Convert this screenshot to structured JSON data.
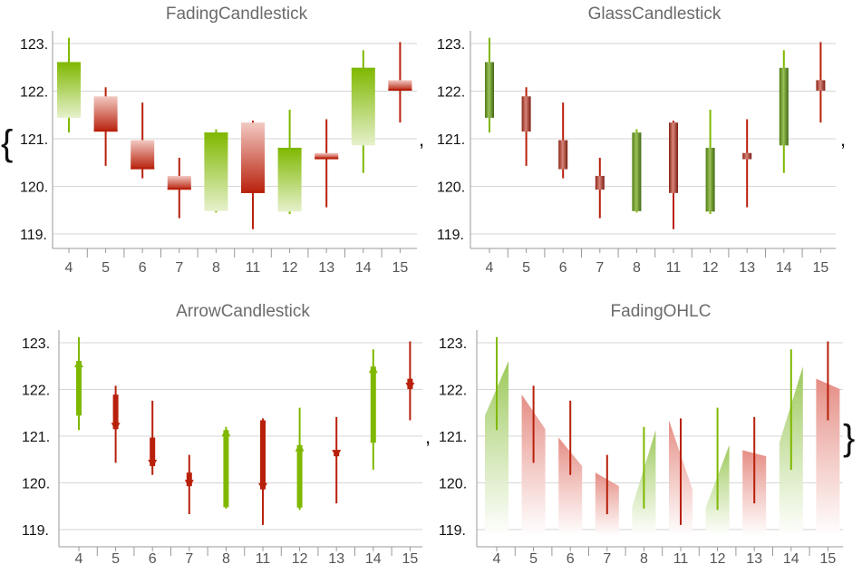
{
  "colors": {
    "up": "#7fb800",
    "down": "#b8200b",
    "grid": "#d6d6d6",
    "axis": "#999999"
  },
  "separators": {
    "open_brace": "{",
    "close_brace": "}",
    "comma": ","
  },
  "chart_data": [
    {
      "type": "candlestick",
      "style": "FadingCandlestick",
      "title": "FadingCandlestick",
      "categories": [
        "4",
        "5",
        "6",
        "7",
        "8",
        "11",
        "12",
        "13",
        "14",
        "15"
      ],
      "ylim": [
        118.8,
        123.3
      ],
      "yticks": [
        119,
        120,
        121,
        122,
        123
      ],
      "ytick_labels": [
        "119.",
        "120.",
        "121.",
        "122.",
        "123."
      ],
      "grid": true,
      "ohlc": [
        {
          "open": 121.44,
          "high": 123.12,
          "low": 121.13,
          "close": 122.61
        },
        {
          "open": 121.89,
          "high": 122.08,
          "low": 120.43,
          "close": 121.15
        },
        {
          "open": 120.97,
          "high": 121.76,
          "low": 120.17,
          "close": 120.36
        },
        {
          "open": 120.22,
          "high": 120.6,
          "low": 119.33,
          "close": 119.93
        },
        {
          "open": 119.48,
          "high": 121.2,
          "low": 119.45,
          "close": 121.13
        },
        {
          "open": 121.34,
          "high": 121.38,
          "low": 119.1,
          "close": 119.86
        },
        {
          "open": 119.47,
          "high": 121.61,
          "low": 119.42,
          "close": 120.81
        },
        {
          "open": 120.7,
          "high": 121.41,
          "low": 119.56,
          "close": 120.57
        },
        {
          "open": 120.86,
          "high": 122.86,
          "low": 120.28,
          "close": 122.49
        },
        {
          "open": 122.23,
          "high": 123.03,
          "low": 121.34,
          "close": 122.01
        }
      ]
    },
    {
      "type": "candlestick",
      "style": "GlassCandlestick",
      "title": "GlassCandlestick",
      "categories": [
        "4",
        "5",
        "6",
        "7",
        "8",
        "11",
        "12",
        "13",
        "14",
        "15"
      ],
      "ylim": [
        118.8,
        123.3
      ],
      "yticks": [
        119,
        120,
        121,
        122,
        123
      ],
      "ytick_labels": [
        "119.",
        "120.",
        "121.",
        "122.",
        "123."
      ],
      "grid": true,
      "ohlc": [
        {
          "open": 121.44,
          "high": 123.12,
          "low": 121.13,
          "close": 122.61
        },
        {
          "open": 121.89,
          "high": 122.08,
          "low": 120.43,
          "close": 121.15
        },
        {
          "open": 120.97,
          "high": 121.76,
          "low": 120.17,
          "close": 120.36
        },
        {
          "open": 120.22,
          "high": 120.6,
          "low": 119.33,
          "close": 119.93
        },
        {
          "open": 119.48,
          "high": 121.2,
          "low": 119.45,
          "close": 121.13
        },
        {
          "open": 121.34,
          "high": 121.38,
          "low": 119.1,
          "close": 119.86
        },
        {
          "open": 119.47,
          "high": 121.61,
          "low": 119.42,
          "close": 120.81
        },
        {
          "open": 120.7,
          "high": 121.41,
          "low": 119.56,
          "close": 120.57
        },
        {
          "open": 120.86,
          "high": 122.86,
          "low": 120.28,
          "close": 122.49
        },
        {
          "open": 122.23,
          "high": 123.03,
          "low": 121.34,
          "close": 122.01
        }
      ]
    },
    {
      "type": "candlestick",
      "style": "ArrowCandlestick",
      "title": "ArrowCandlestick",
      "categories": [
        "4",
        "5",
        "6",
        "7",
        "8",
        "11",
        "12",
        "13",
        "14",
        "15"
      ],
      "ylim": [
        118.8,
        123.3
      ],
      "yticks": [
        119,
        120,
        121,
        122,
        123
      ],
      "ytick_labels": [
        "119.",
        "120.",
        "121.",
        "122.",
        "123."
      ],
      "grid": true,
      "ohlc": [
        {
          "open": 121.44,
          "high": 123.12,
          "low": 121.13,
          "close": 122.61
        },
        {
          "open": 121.89,
          "high": 122.08,
          "low": 120.43,
          "close": 121.15
        },
        {
          "open": 120.97,
          "high": 121.76,
          "low": 120.17,
          "close": 120.36
        },
        {
          "open": 120.22,
          "high": 120.6,
          "low": 119.33,
          "close": 119.93
        },
        {
          "open": 119.48,
          "high": 121.2,
          "low": 119.45,
          "close": 121.13
        },
        {
          "open": 121.34,
          "high": 121.38,
          "low": 119.1,
          "close": 119.86
        },
        {
          "open": 119.47,
          "high": 121.61,
          "low": 119.42,
          "close": 120.81
        },
        {
          "open": 120.7,
          "high": 121.41,
          "low": 119.56,
          "close": 120.57
        },
        {
          "open": 120.86,
          "high": 122.86,
          "low": 120.28,
          "close": 122.49
        },
        {
          "open": 122.23,
          "high": 123.03,
          "low": 121.34,
          "close": 122.01
        }
      ]
    },
    {
      "type": "candlestick",
      "style": "FadingOHLC",
      "title": "FadingOHLC",
      "categories": [
        "4",
        "5",
        "6",
        "7",
        "8",
        "11",
        "12",
        "13",
        "14",
        "15"
      ],
      "ylim": [
        118.8,
        123.3
      ],
      "yticks": [
        119,
        120,
        121,
        122,
        123
      ],
      "ytick_labels": [
        "119.",
        "120.",
        "121.",
        "122.",
        "123."
      ],
      "grid": true,
      "ohlc": [
        {
          "open": 121.44,
          "high": 123.12,
          "low": 121.13,
          "close": 122.61
        },
        {
          "open": 121.89,
          "high": 122.08,
          "low": 120.43,
          "close": 121.15
        },
        {
          "open": 120.97,
          "high": 121.76,
          "low": 120.17,
          "close": 120.36
        },
        {
          "open": 120.22,
          "high": 120.6,
          "low": 119.33,
          "close": 119.93
        },
        {
          "open": 119.48,
          "high": 121.2,
          "low": 119.45,
          "close": 121.13
        },
        {
          "open": 121.34,
          "high": 121.38,
          "low": 119.1,
          "close": 119.86
        },
        {
          "open": 119.47,
          "high": 121.61,
          "low": 119.42,
          "close": 120.81
        },
        {
          "open": 120.7,
          "high": 121.41,
          "low": 119.56,
          "close": 120.57
        },
        {
          "open": 120.86,
          "high": 122.86,
          "low": 120.28,
          "close": 122.49
        },
        {
          "open": 122.23,
          "high": 123.03,
          "low": 121.34,
          "close": 122.01
        }
      ]
    }
  ]
}
